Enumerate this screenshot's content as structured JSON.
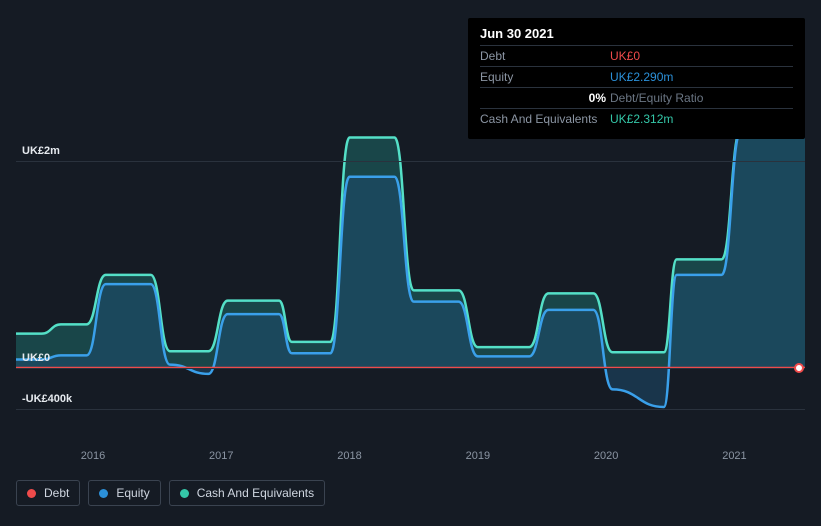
{
  "tooltip": {
    "date": "Jun 30 2021",
    "debt_label": "Debt",
    "debt_value": "UK£0",
    "debt_color": "#ef4b4b",
    "equity_label": "Equity",
    "equity_value": "UK£2.290m",
    "equity_color": "#2b90d9",
    "ratio_pct": "0%",
    "ratio_text": "Debt/Equity Ratio",
    "cash_label": "Cash And Equivalents",
    "cash_value": "UK£2.312m",
    "cash_color": "#34c7a8"
  },
  "chart": {
    "type": "area",
    "background_color": "#151b24",
    "grid_color": "#2a323d",
    "x_domain_start": 2015.4,
    "x_domain_end": 2021.55,
    "y_domain_min": -700000,
    "y_domain_max": 2400000,
    "y_ticks": [
      {
        "v": 2000000,
        "label": "UK£2m"
      },
      {
        "v": 0,
        "label": "UK£0"
      },
      {
        "v": -400000,
        "label": "-UK£400k"
      }
    ],
    "x_ticks": [
      {
        "v": 2016,
        "label": "2016"
      },
      {
        "v": 2017,
        "label": "2017"
      },
      {
        "v": 2018,
        "label": "2018"
      },
      {
        "v": 2019,
        "label": "2019"
      },
      {
        "v": 2020,
        "label": "2020"
      },
      {
        "v": 2021,
        "label": "2021"
      }
    ],
    "series": {
      "cash": {
        "name": "Cash And Equivalents",
        "stroke": "#54e0c7",
        "fill": "#1e6a68",
        "fill_opacity": 0.55,
        "stroke_width": 2.5,
        "points": [
          [
            2015.4,
            330000
          ],
          [
            2015.6,
            330000
          ],
          [
            2015.75,
            420000
          ],
          [
            2015.95,
            420000
          ],
          [
            2016.1,
            900000
          ],
          [
            2016.45,
            900000
          ],
          [
            2016.6,
            160000
          ],
          [
            2016.9,
            160000
          ],
          [
            2017.05,
            650000
          ],
          [
            2017.45,
            650000
          ],
          [
            2017.55,
            250000
          ],
          [
            2017.85,
            250000
          ],
          [
            2018.0,
            2230000
          ],
          [
            2018.35,
            2230000
          ],
          [
            2018.5,
            750000
          ],
          [
            2018.85,
            750000
          ],
          [
            2019.0,
            200000
          ],
          [
            2019.4,
            200000
          ],
          [
            2019.55,
            720000
          ],
          [
            2019.9,
            720000
          ],
          [
            2020.05,
            150000
          ],
          [
            2020.45,
            150000
          ],
          [
            2020.55,
            1050000
          ],
          [
            2020.9,
            1050000
          ],
          [
            2021.05,
            2312000
          ],
          [
            2021.55,
            2312000
          ]
        ]
      },
      "equity": {
        "name": "Equity",
        "stroke": "#3aa0ea",
        "fill": "#1e4a6b",
        "fill_opacity": 0.55,
        "stroke_width": 2.5,
        "points": [
          [
            2015.4,
            80000
          ],
          [
            2015.6,
            80000
          ],
          [
            2015.75,
            120000
          ],
          [
            2015.95,
            120000
          ],
          [
            2016.1,
            810000
          ],
          [
            2016.45,
            810000
          ],
          [
            2016.6,
            30000
          ],
          [
            2016.9,
            -60000
          ],
          [
            2017.05,
            520000
          ],
          [
            2017.45,
            520000
          ],
          [
            2017.55,
            140000
          ],
          [
            2017.85,
            140000
          ],
          [
            2018.0,
            1850000
          ],
          [
            2018.35,
            1850000
          ],
          [
            2018.5,
            640000
          ],
          [
            2018.85,
            640000
          ],
          [
            2019.0,
            110000
          ],
          [
            2019.4,
            110000
          ],
          [
            2019.55,
            560000
          ],
          [
            2019.9,
            560000
          ],
          [
            2020.05,
            -210000
          ],
          [
            2020.45,
            -380000
          ],
          [
            2020.55,
            900000
          ],
          [
            2020.9,
            900000
          ],
          [
            2021.05,
            2290000
          ],
          [
            2021.55,
            2290000
          ]
        ]
      },
      "debt": {
        "name": "Debt",
        "stroke": "#ef4b4b",
        "fill": "#5a1e22",
        "fill_opacity": 0.6,
        "stroke_width": 2,
        "points": [
          [
            2015.4,
            0
          ],
          [
            2021.55,
            0
          ]
        ]
      }
    },
    "cursor": {
      "x": 2021.5,
      "series": "debt"
    }
  },
  "legend": {
    "items": [
      {
        "key": "debt",
        "label": "Debt",
        "color": "#ef4b4b"
      },
      {
        "key": "equity",
        "label": "Equity",
        "color": "#2b90d9"
      },
      {
        "key": "cash",
        "label": "Cash And Equivalents",
        "color": "#34c7a8"
      }
    ]
  }
}
